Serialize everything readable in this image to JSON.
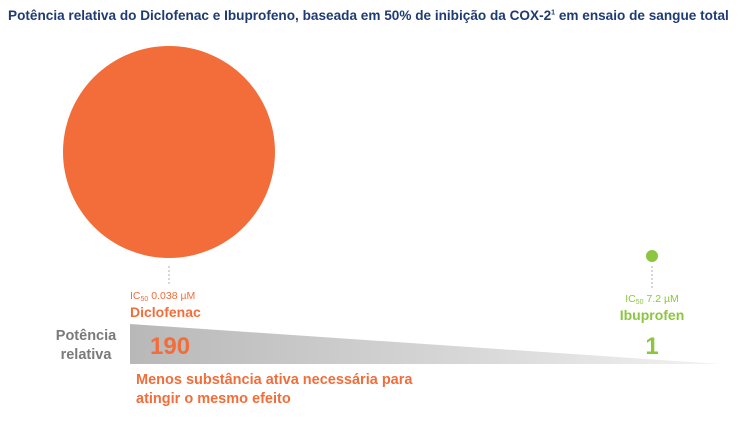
{
  "title_main": "Potência relativa do Diclofenac e Ibuprofeno, baseada em 50% de inibição da COX-2",
  "title_ref": "1",
  "title_tail": " em ensaio de sangue total",
  "axis_label_lines": [
    "Potência",
    "relativa"
  ],
  "footnote_lines": [
    "Menos substância ativa necessária para",
    "atingir o mesmo efeito"
  ],
  "colors": {
    "title": "#1f3b73",
    "diclofenac": "#f26d3a",
    "ibuprofen": "#8cc63f",
    "axis_label": "#7a7a7a",
    "wedge": "#bfbfbf"
  },
  "chart_data": {
    "type": "bubble",
    "title": "Potência relativa do Diclofenac e Ibuprofeno, baseada em 50% de inibição da COX-2¹ em ensaio de sangue total",
    "ylabel": "Potência relativa",
    "annotation": "Menos substância ativa necessária para atingir o mesmo efeito",
    "series": [
      {
        "name": "Diclofenac",
        "ic50_prefix": "IC",
        "ic50_sub": "50",
        "ic50_value": "0.038 µM",
        "relative_potency": 190,
        "color": "#f26d3a"
      },
      {
        "name": "Ibuprofen",
        "ic50_prefix": "IC",
        "ic50_sub": "50",
        "ic50_value": "7.2 µM",
        "relative_potency": 1,
        "color": "#8cc63f"
      }
    ]
  }
}
